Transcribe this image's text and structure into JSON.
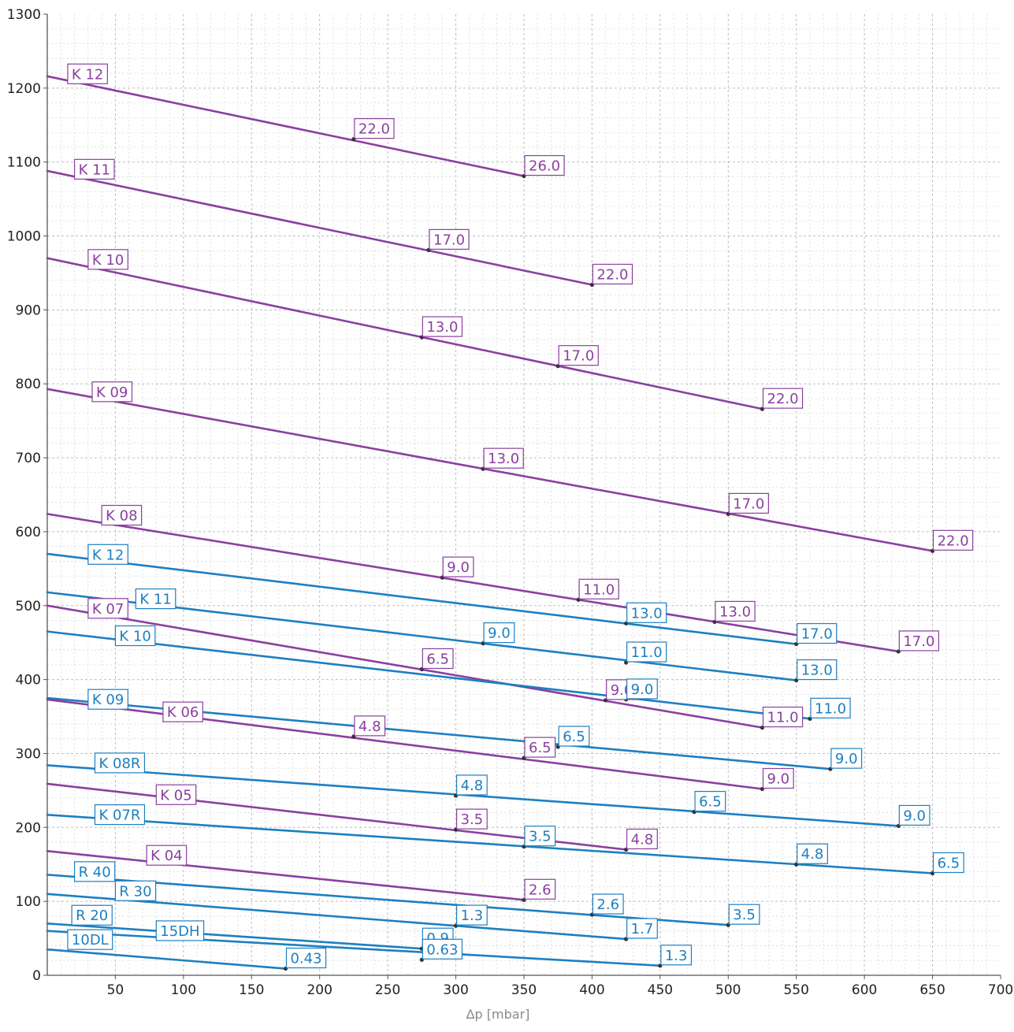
{
  "chart_data": {
    "type": "line",
    "title": "",
    "xlabel": "Δp [mbar]",
    "ylabel": "",
    "xlim": [
      0,
      700
    ],
    "ylim": [
      0,
      1300
    ],
    "x_ticks": [
      "50",
      "100",
      "150",
      "200",
      "250",
      "300",
      "350",
      "400",
      "450",
      "500",
      "550",
      "600",
      "650",
      "700"
    ],
    "y_ticks": [
      "0",
      "100",
      "200",
      "300",
      "400",
      "500",
      "600",
      "700",
      "800",
      "900",
      "1000",
      "1100",
      "1200",
      "1300"
    ],
    "grid": true,
    "legend": "none",
    "colors": {
      "purple": "#8b3fa0",
      "blue": "#1d7fc1",
      "grid": "#cfcfcf"
    },
    "series": [
      {
        "name": "K 12",
        "color": "purple",
        "line": [
          [
            0,
            1216
          ],
          [
            350,
            1081
          ]
        ],
        "name_at": [
          15,
          1215
        ],
        "points": [
          {
            "x": 225,
            "y": 1131,
            "label": "22.0"
          },
          {
            "x": 350,
            "y": 1081,
            "label": "26.0"
          }
        ]
      },
      {
        "name": "K 11",
        "color": "purple",
        "line": [
          [
            0,
            1088
          ],
          [
            400,
            934
          ]
        ],
        "name_at": [
          20,
          1086
        ],
        "points": [
          {
            "x": 280,
            "y": 981,
            "label": "17.0"
          },
          {
            "x": 400,
            "y": 934,
            "label": "22.0"
          }
        ]
      },
      {
        "name": "K 10",
        "color": "purple",
        "line": [
          [
            0,
            970
          ],
          [
            525,
            766
          ]
        ],
        "name_at": [
          30,
          964
        ],
        "points": [
          {
            "x": 275,
            "y": 863,
            "label": "13.0"
          },
          {
            "x": 375,
            "y": 824,
            "label": "17.0"
          },
          {
            "x": 525,
            "y": 766,
            "label": "22.0"
          }
        ]
      },
      {
        "name": "K 09",
        "color": "purple",
        "line": [
          [
            0,
            793
          ],
          [
            650,
            574
          ]
        ],
        "name_at": [
          33,
          785
        ],
        "points": [
          {
            "x": 320,
            "y": 685,
            "label": "13.0"
          },
          {
            "x": 500,
            "y": 624,
            "label": "17.0"
          },
          {
            "x": 650,
            "y": 574,
            "label": "22.0"
          }
        ]
      },
      {
        "name": "K 08",
        "color": "purple",
        "line": [
          [
            0,
            624
          ],
          [
            625,
            438
          ]
        ],
        "name_at": [
          40,
          618
        ],
        "points": [
          {
            "x": 290,
            "y": 538,
            "label": "9.0"
          },
          {
            "x": 390,
            "y": 508,
            "label": "11.0"
          },
          {
            "x": 490,
            "y": 478,
            "label": "13.0"
          },
          {
            "x": 625,
            "y": 438,
            "label": "17.0"
          }
        ]
      },
      {
        "name": "K 12",
        "color": "blue",
        "line": [
          [
            0,
            570
          ],
          [
            550,
            448
          ]
        ],
        "name_at": [
          30,
          565
        ],
        "points": [
          {
            "x": 425,
            "y": 476,
            "label": "13.0"
          },
          {
            "x": 550,
            "y": 448,
            "label": "17.0"
          }
        ]
      },
      {
        "name": "K 11",
        "color": "blue",
        "line": [
          [
            0,
            518
          ],
          [
            550,
            399
          ]
        ],
        "name_at": [
          65,
          505
        ],
        "points": [
          {
            "x": 320,
            "y": 449,
            "label": "9.0"
          },
          {
            "x": 425,
            "y": 423,
            "label": "11.0"
          },
          {
            "x": 550,
            "y": 399,
            "label": "13.0"
          }
        ]
      },
      {
        "name": "K 07",
        "color": "purple",
        "line": [
          [
            0,
            500
          ],
          [
            525,
            335
          ]
        ],
        "name_at": [
          30,
          492
        ],
        "points": [
          {
            "x": 275,
            "y": 414,
            "label": "6.5"
          },
          {
            "x": 410,
            "y": 372,
            "label": "9.0"
          },
          {
            "x": 525,
            "y": 335,
            "label": "11.0"
          }
        ]
      },
      {
        "name": "K 10",
        "color": "blue",
        "line": [
          [
            0,
            465
          ],
          [
            560,
            347
          ]
        ],
        "name_at": [
          50,
          455
        ],
        "points": [
          {
            "x": 425,
            "y": 373,
            "label": "9.0"
          },
          {
            "x": 560,
            "y": 347,
            "label": "11.0"
          }
        ]
      },
      {
        "name": "K 09",
        "color": "blue",
        "line": [
          [
            0,
            375
          ],
          [
            575,
            279
          ]
        ],
        "name_at": [
          30,
          369
        ],
        "points": [
          {
            "x": 375,
            "y": 309,
            "label": "6.5"
          },
          {
            "x": 575,
            "y": 279,
            "label": "9.0"
          }
        ]
      },
      {
        "name": "K 06",
        "color": "purple",
        "line": [
          [
            0,
            373
          ],
          [
            525,
            252
          ]
        ],
        "name_at": [
          85,
          352
        ],
        "points": [
          {
            "x": 225,
            "y": 323,
            "label": "4.8"
          },
          {
            "x": 350,
            "y": 294,
            "label": "6.5"
          },
          {
            "x": 525,
            "y": 252,
            "label": "9.0"
          }
        ]
      },
      {
        "name": "K 08R",
        "color": "blue",
        "line": [
          [
            0,
            284
          ],
          [
            625,
            202
          ]
        ],
        "name_at": [
          35,
          283
        ],
        "points": [
          {
            "x": 300,
            "y": 243,
            "label": "4.8"
          },
          {
            "x": 475,
            "y": 221,
            "label": "6.5"
          },
          {
            "x": 625,
            "y": 202,
            "label": "9.0"
          }
        ]
      },
      {
        "name": "K 05",
        "color": "purple",
        "line": [
          [
            0,
            259
          ],
          [
            425,
            170
          ]
        ],
        "name_at": [
          80,
          240
        ],
        "points": [
          {
            "x": 300,
            "y": 197,
            "label": "3.5"
          },
          {
            "x": 425,
            "y": 170,
            "label": "4.8"
          }
        ]
      },
      {
        "name": "K 07R",
        "color": "blue",
        "line": [
          [
            0,
            217
          ],
          [
            650,
            138
          ]
        ],
        "name_at": [
          35,
          213
        ],
        "points": [
          {
            "x": 350,
            "y": 174,
            "label": "3.5"
          },
          {
            "x": 550,
            "y": 150,
            "label": "4.8"
          },
          {
            "x": 650,
            "y": 138,
            "label": "6.5"
          }
        ]
      },
      {
        "name": "K 04",
        "color": "purple",
        "line": [
          [
            0,
            168
          ],
          [
            350,
            102
          ]
        ],
        "name_at": [
          73,
          158
        ],
        "points": [
          {
            "x": 350,
            "y": 102,
            "label": "2.6"
          }
        ]
      },
      {
        "name": "R 40",
        "color": "blue",
        "line": [
          [
            0,
            136
          ],
          [
            500,
            68
          ]
        ],
        "name_at": [
          20,
          136
        ],
        "points": [
          {
            "x": 400,
            "y": 82,
            "label": "2.6"
          },
          {
            "x": 500,
            "y": 68,
            "label": "3.5"
          }
        ]
      },
      {
        "name": "R 30",
        "color": "blue",
        "line": [
          [
            0,
            110
          ],
          [
            425,
            49
          ]
        ],
        "name_at": [
          50,
          110
        ],
        "points": [
          {
            "x": 300,
            "y": 67,
            "label": "1.3"
          },
          {
            "x": 425,
            "y": 49,
            "label": "1.7"
          }
        ]
      },
      {
        "name": "R 20",
        "color": "blue",
        "line": [
          [
            0,
            70
          ],
          [
            275,
            36
          ]
        ],
        "name_at": [
          18,
          77
        ],
        "points": [
          {
            "x": 275,
            "y": 36,
            "label": "0.9"
          }
        ]
      },
      {
        "name": "15DH",
        "color": "blue",
        "line": [
          [
            0,
            60
          ],
          [
            450,
            13
          ]
        ],
        "name_at": [
          80,
          56
        ],
        "points": [
          {
            "x": 275,
            "y": 21,
            "label": "0.63"
          },
          {
            "x": 450,
            "y": 13,
            "label": "1.3"
          }
        ]
      },
      {
        "name": "10DL",
        "color": "blue",
        "line": [
          [
            0,
            35
          ],
          [
            175,
            9
          ]
        ],
        "name_at": [
          15,
          44
        ],
        "points": [
          {
            "x": 175,
            "y": 9,
            "label": "0.43"
          }
        ]
      }
    ]
  }
}
